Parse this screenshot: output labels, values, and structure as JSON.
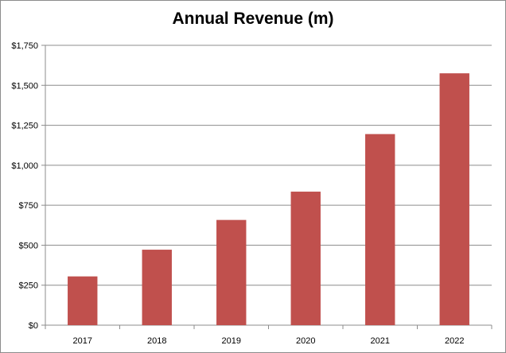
{
  "chart_data": {
    "type": "bar",
    "title": "Annual Revenue (m)",
    "xlabel": "",
    "ylabel": "",
    "categories": [
      "2017",
      "2018",
      "2019",
      "2020",
      "2021",
      "2022"
    ],
    "values": [
      305,
      472,
      658,
      835,
      1195,
      1575
    ],
    "ylim": [
      0,
      1750
    ],
    "y_ticks": [
      0,
      250,
      500,
      750,
      1000,
      1250,
      1500,
      1750
    ],
    "y_tick_labels": [
      "$0",
      "$250",
      "$500",
      "$750",
      "$1,000",
      "$1,250",
      "$1,500",
      "$1,750"
    ],
    "grid": true,
    "legend": "none",
    "bar_color": "#c0504d"
  }
}
